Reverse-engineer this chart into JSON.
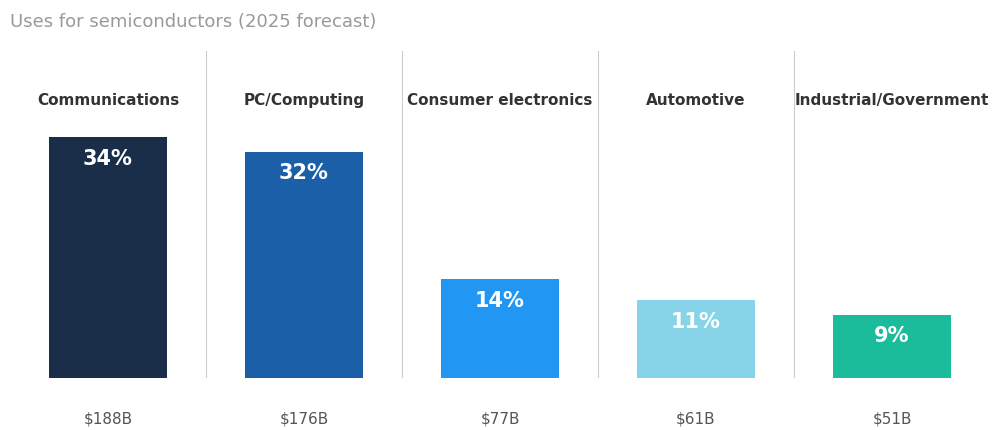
{
  "title": "Uses for semiconductors (2025 forecast)",
  "categories": [
    "Communications",
    "PC/Computing",
    "Consumer electronics",
    "Automotive",
    "Industrial/Government"
  ],
  "values": [
    34,
    32,
    14,
    11,
    9
  ],
  "dollar_labels": [
    "$188B",
    "$176B",
    "$77B",
    "$61B",
    "$51B"
  ],
  "pct_labels": [
    "34%",
    "32%",
    "14%",
    "11%",
    "9%"
  ],
  "bar_colors": [
    "#1a2e4a",
    "#1a5fa8",
    "#2196f3",
    "#87d4e8",
    "#1abc9c"
  ],
  "background_color": "#ffffff",
  "title_color": "#999999",
  "category_color": "#333333",
  "dollar_color": "#555555",
  "pct_text_color": "#ffffff",
  "separator_color": "#cccccc",
  "bar_width": 0.6,
  "ylim": [
    0,
    37
  ],
  "title_fontsize": 13,
  "category_fontsize": 11,
  "dollar_fontsize": 11,
  "pct_fontsize": 15
}
